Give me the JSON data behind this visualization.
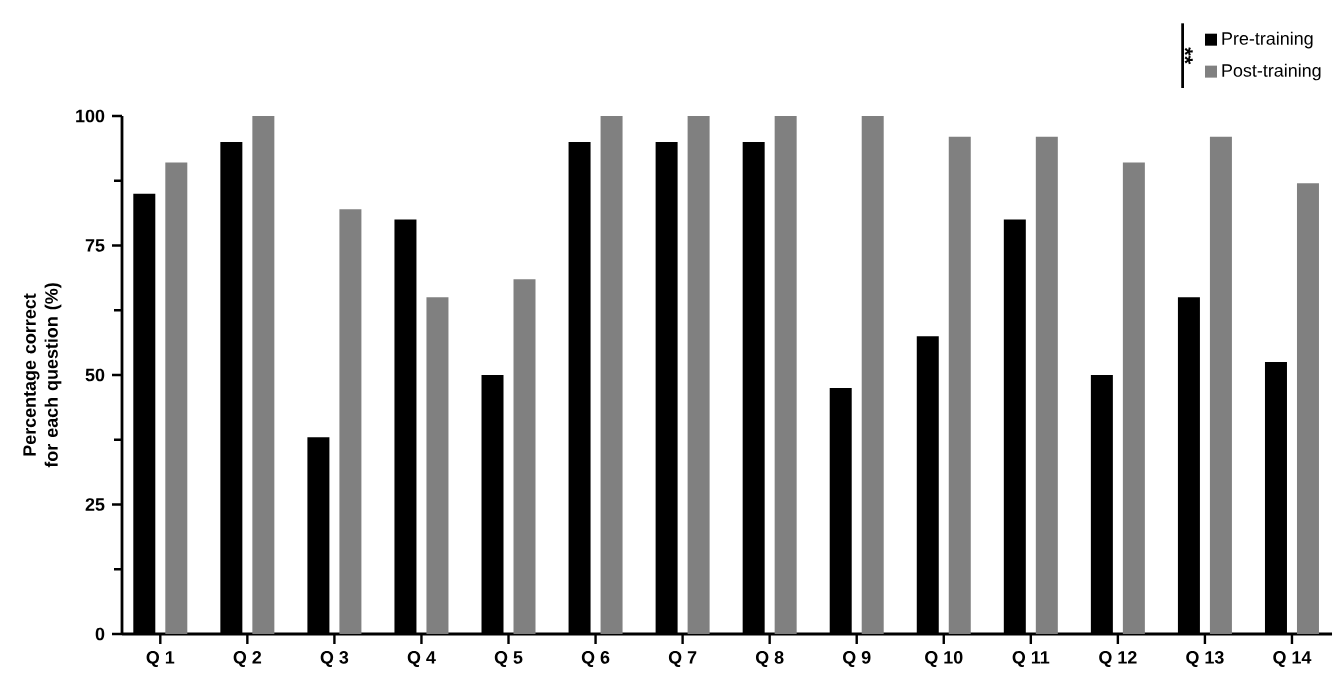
{
  "chart_data": {
    "type": "bar",
    "ylabel": "Percentage correct for each question (%)",
    "categories": [
      "Q 1",
      "Q 2",
      "Q 3",
      "Q 4",
      "Q 5",
      "Q 6",
      "Q 7",
      "Q 8",
      "Q 9",
      "Q 10",
      "Q 11",
      "Q 12",
      "Q 13",
      "Q 14"
    ],
    "series": [
      {
        "name": "Pre-training",
        "color": "#000000",
        "values": [
          85,
          95,
          38,
          80,
          50,
          95,
          95,
          95,
          47.5,
          57.5,
          80,
          50,
          65,
          52.5
        ]
      },
      {
        "name": "Post-training",
        "color": "#808080",
        "values": [
          91,
          100,
          82,
          65,
          68.5,
          100,
          100,
          100,
          100,
          96,
          96,
          91,
          96,
          87
        ]
      }
    ],
    "ylim": [
      0,
      100
    ],
    "yticks": [
      0,
      25,
      50,
      75,
      100
    ],
    "legend": "top right",
    "annotations": [
      "**"
    ]
  }
}
